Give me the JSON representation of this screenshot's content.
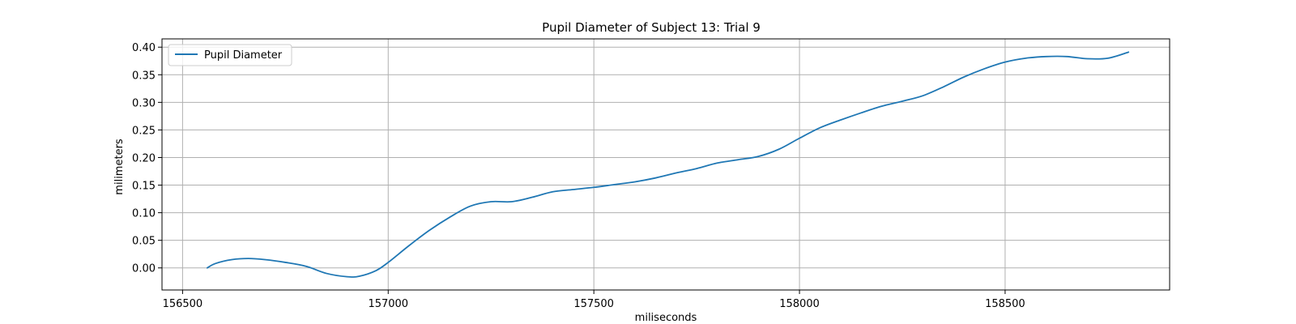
{
  "chart_data": {
    "type": "line",
    "title": "Pupil Diameter of Subject 13: Trial 9",
    "xlabel": "miliseconds",
    "ylabel": "milimeters",
    "xlim": [
      156450,
      158900
    ],
    "ylim": [
      -0.04,
      0.415
    ],
    "xticks": [
      156500,
      157000,
      157500,
      158000,
      158500
    ],
    "yticks": [
      0.0,
      0.05,
      0.1,
      0.15,
      0.2,
      0.25,
      0.3,
      0.35,
      0.4
    ],
    "grid": true,
    "legend_position": "top-left",
    "series": [
      {
        "name": "Pupil Diameter",
        "color": "#1f77b4",
        "x": [
          156560,
          156580,
          156620,
          156660,
          156700,
          156750,
          156800,
          156850,
          156900,
          156930,
          156970,
          157000,
          157050,
          157100,
          157150,
          157200,
          157250,
          157300,
          157350,
          157400,
          157450,
          157500,
          157550,
          157600,
          157650,
          157700,
          157750,
          157800,
          157850,
          157900,
          157950,
          158000,
          158050,
          158100,
          158150,
          158200,
          158250,
          158300,
          158350,
          158400,
          158450,
          158500,
          158550,
          158600,
          158650,
          158700,
          158750,
          158800
        ],
        "y": [
          0.0,
          0.008,
          0.015,
          0.017,
          0.015,
          0.01,
          0.003,
          -0.01,
          -0.016,
          -0.015,
          -0.005,
          0.01,
          0.04,
          0.068,
          0.092,
          0.112,
          0.12,
          0.12,
          0.128,
          0.138,
          0.142,
          0.146,
          0.151,
          0.156,
          0.163,
          0.172,
          0.18,
          0.19,
          0.196,
          0.202,
          0.215,
          0.235,
          0.254,
          0.268,
          0.281,
          0.293,
          0.302,
          0.312,
          0.328,
          0.346,
          0.361,
          0.373,
          0.38,
          0.383,
          0.383,
          0.379,
          0.38,
          0.391
        ]
      }
    ]
  }
}
